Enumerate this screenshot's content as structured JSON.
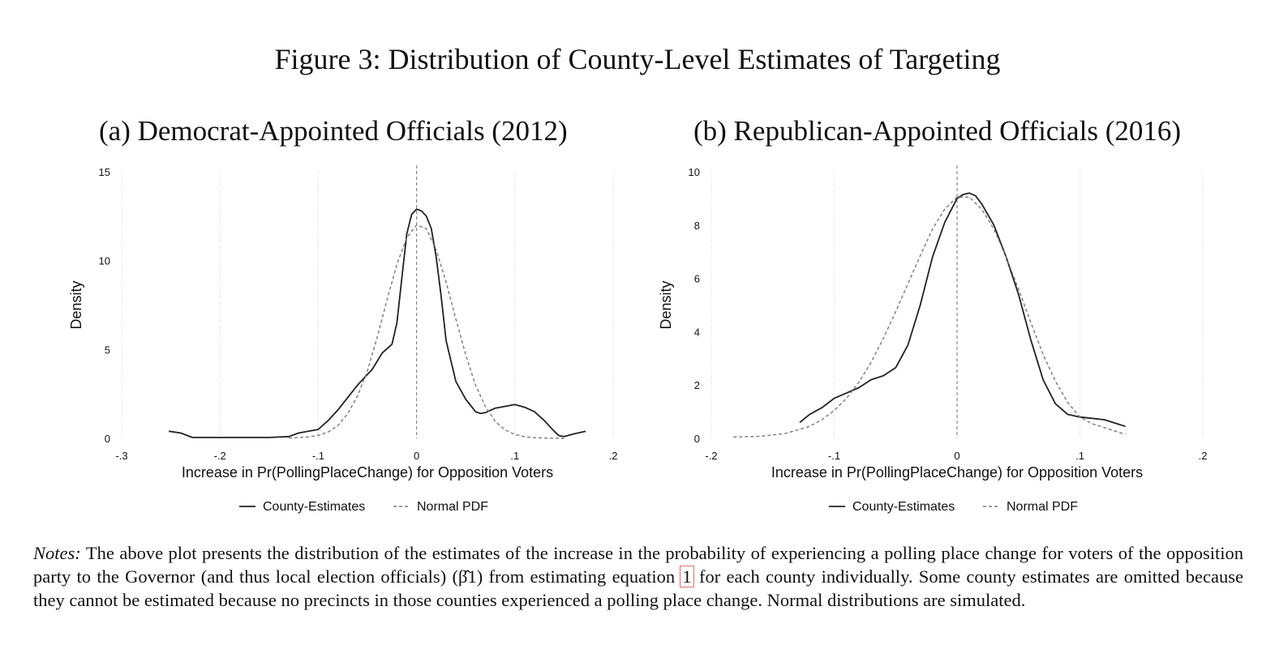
{
  "figure_title": "Figure 3: Distribution of County-Level Estimates of Targeting",
  "notes": {
    "label": "Notes:",
    "text_1": " The above plot presents the distribution of the estimates of the increase in the probability of experiencing a polling place change for voters of the opposition party to the Governor (and thus local election officials) ",
    "beta": "(β̂1)",
    "text_2": " from estimating equation ",
    "equation_ref": "1",
    "text_3": " for each county individually. Some county estimates are omitted because they cannot be estimated because no precincts in those counties experienced a polling place change. Normal distributions are simulated."
  },
  "colors": {
    "estimate_line": "#222222",
    "normal_line": "#7a7a7a",
    "grid": "#d6d6d6",
    "zero_line": "#888888"
  },
  "chart_data": [
    {
      "type": "line",
      "title": "(a) Democrat-Appointed Officials (2012)",
      "xlabel": "Increase in Pr(PollingPlaceChange) for Opposition Voters",
      "ylabel": "Density",
      "xlim": [
        -0.3,
        0.2
      ],
      "ylim": [
        0,
        15
      ],
      "xticks": [
        -0.3,
        -0.2,
        -0.1,
        0,
        0.1,
        0.2
      ],
      "xtick_labels": [
        "-.3",
        "-.2",
        "-.1",
        "0",
        ".1",
        ".2"
      ],
      "yticks": [
        0,
        5,
        10,
        15
      ],
      "ytick_labels": [
        "0",
        "5",
        "10",
        "15"
      ],
      "grid": "vertical dotted",
      "reference_line_x": 0,
      "legend": {
        "position": "bottom"
      },
      "series": [
        {
          "name": "County-Estimates",
          "style": "solid",
          "x": [
            -0.252,
            -0.24,
            -0.228,
            -0.2,
            -0.15,
            -0.13,
            -0.12,
            -0.1,
            -0.09,
            -0.08,
            -0.06,
            -0.045,
            -0.035,
            -0.025,
            -0.02,
            -0.015,
            -0.01,
            -0.005,
            0,
            0.005,
            0.01,
            0.015,
            0.02,
            0.025,
            0.03,
            0.04,
            0.05,
            0.06,
            0.065,
            0.07,
            0.08,
            0.09,
            0.1,
            0.11,
            0.12,
            0.13,
            0.14,
            0.145,
            0.15,
            0.16,
            0.172
          ],
          "y": [
            0.4,
            0.3,
            0.05,
            0.05,
            0.05,
            0.1,
            0.3,
            0.5,
            1.0,
            1.6,
            3.0,
            3.9,
            4.8,
            5.3,
            6.5,
            9.0,
            11.5,
            12.6,
            12.9,
            12.8,
            12.5,
            11.8,
            10.2,
            8.0,
            5.5,
            3.2,
            2.2,
            1.5,
            1.4,
            1.45,
            1.7,
            1.8,
            1.9,
            1.75,
            1.5,
            1.0,
            0.4,
            0.15,
            0.1,
            0.25,
            0.4
          ]
        },
        {
          "name": "Normal PDF",
          "style": "dashed",
          "x": [
            -0.13,
            -0.11,
            -0.1,
            -0.09,
            -0.08,
            -0.07,
            -0.06,
            -0.05,
            -0.04,
            -0.03,
            -0.02,
            -0.01,
            0,
            0.01,
            0.02,
            0.03,
            0.04,
            0.05,
            0.06,
            0.07,
            0.08,
            0.09,
            0.1,
            0.11,
            0.12,
            0.13,
            0.14,
            0.15
          ],
          "y": [
            0.02,
            0.08,
            0.17,
            0.35,
            0.72,
            1.4,
            2.4,
            3.8,
            5.7,
            7.8,
            9.8,
            11.3,
            12.0,
            11.8,
            10.6,
            8.8,
            6.7,
            4.7,
            3.0,
            1.8,
            0.95,
            0.48,
            0.22,
            0.09,
            0.04,
            0.02,
            0.01,
            0.0
          ]
        }
      ]
    },
    {
      "type": "line",
      "title": "(b) Republican-Appointed Officials (2016)",
      "xlabel": "Increase in Pr(PollingPlaceChange) for Opposition Voters",
      "ylabel": "Density",
      "xlim": [
        -0.2,
        0.2
      ],
      "ylim": [
        0,
        10
      ],
      "xticks": [
        -0.2,
        -0.1,
        0,
        0.1,
        0.2
      ],
      "xtick_labels": [
        "-.2",
        "-.1",
        "0",
        ".1",
        ".2"
      ],
      "yticks": [
        0,
        2,
        4,
        6,
        8,
        10
      ],
      "ytick_labels": [
        "0",
        "2",
        "4",
        "6",
        "8",
        "10"
      ],
      "grid": "vertical dotted",
      "reference_line_x": 0,
      "legend": {
        "position": "bottom"
      },
      "series": [
        {
          "name": "County-Estimates",
          "style": "solid",
          "x": [
            -0.128,
            -0.12,
            -0.11,
            -0.1,
            -0.09,
            -0.08,
            -0.07,
            -0.06,
            -0.05,
            -0.04,
            -0.03,
            -0.02,
            -0.01,
            0,
            0.005,
            0.01,
            0.015,
            0.02,
            0.03,
            0.04,
            0.05,
            0.06,
            0.07,
            0.08,
            0.09,
            0.1,
            0.11,
            0.12,
            0.13,
            0.137
          ],
          "y": [
            0.6,
            0.9,
            1.15,
            1.5,
            1.7,
            1.9,
            2.2,
            2.35,
            2.65,
            3.5,
            5.0,
            6.8,
            8.1,
            9.0,
            9.15,
            9.2,
            9.1,
            8.8,
            8.0,
            6.8,
            5.4,
            3.7,
            2.2,
            1.3,
            0.9,
            0.8,
            0.75,
            0.7,
            0.55,
            0.45
          ]
        },
        {
          "name": "Normal PDF",
          "style": "dashed",
          "x": [
            -0.182,
            -0.16,
            -0.14,
            -0.12,
            -0.11,
            -0.1,
            -0.09,
            -0.08,
            -0.07,
            -0.06,
            -0.05,
            -0.04,
            -0.03,
            -0.02,
            -0.01,
            0,
            0.01,
            0.02,
            0.03,
            0.04,
            0.05,
            0.06,
            0.07,
            0.08,
            0.09,
            0.1,
            0.11,
            0.12,
            0.137
          ],
          "y": [
            0.05,
            0.08,
            0.18,
            0.45,
            0.7,
            1.05,
            1.5,
            2.1,
            2.85,
            3.75,
            4.75,
            5.8,
            6.85,
            7.85,
            8.6,
            9.05,
            9.05,
            8.6,
            7.85,
            6.8,
            5.6,
            4.35,
            3.15,
            2.15,
            1.35,
            0.8,
            0.55,
            0.4,
            0.15
          ]
        }
      ]
    }
  ]
}
